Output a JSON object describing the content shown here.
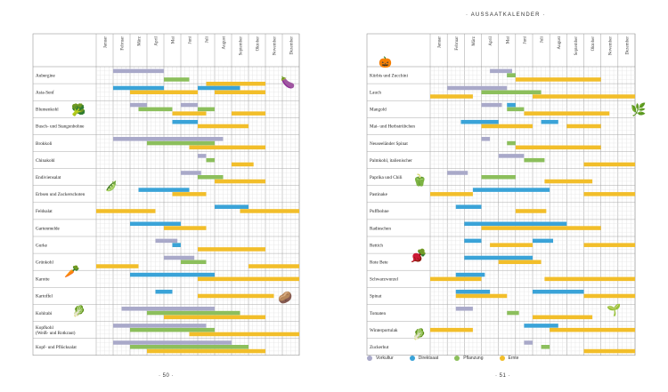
{
  "header": {
    "title": "· AUSSAATKALENDER ·"
  },
  "pages": {
    "left_number": "· 50 ·",
    "right_number": "· 51 ·"
  },
  "colors": {
    "vorkultur": "#a9a9c9",
    "direktsaat": "#3aa3d8",
    "pflanzung": "#8cbf5c",
    "ernte": "#f2be2a",
    "grid": "#cfcfcf"
  },
  "legend": [
    {
      "key": "vorkultur",
      "label": "Vorkultur"
    },
    {
      "key": "direktsaat",
      "label": "Direktsaat"
    },
    {
      "key": "pflanzung",
      "label": "Pflanzung"
    },
    {
      "key": "ernte",
      "label": "Ernte"
    }
  ],
  "months": [
    "Januar",
    "Februar",
    "März",
    "April",
    "Mai",
    "Juni",
    "Juli",
    "August",
    "September",
    "Oktober",
    "November",
    "Dezember"
  ],
  "chart_data": [
    {
      "type": "table",
      "page": "left",
      "rows": [
        {
          "name": "Aubergine",
          "bars": [
            [
              0,
              1,
              4,
              "vorkultur"
            ],
            [
              2,
              4,
              5.5,
              "pflanzung"
            ],
            [
              3,
              6.5,
              10,
              "ernte"
            ]
          ]
        },
        {
          "name": "Asia-Senf",
          "bars": [
            [
              0,
              1,
              4,
              "direktsaat"
            ],
            [
              0,
              6,
              8.5,
              "direktsaat"
            ],
            [
              1,
              2,
              6,
              "ernte"
            ],
            [
              1,
              7,
              10,
              "ernte"
            ]
          ]
        },
        {
          "name": "Blumenkohl",
          "bars": [
            [
              0,
              2,
              3,
              "vorkultur"
            ],
            [
              0,
              5,
              6,
              "vorkultur"
            ],
            [
              1,
              2.5,
              4.5,
              "pflanzung"
            ],
            [
              1,
              6,
              7,
              "pflanzung"
            ],
            [
              2,
              4.5,
              6.5,
              "ernte"
            ],
            [
              2,
              8,
              10,
              "ernte"
            ]
          ]
        },
        {
          "name": "Busch- und Stangenbohne",
          "bars": [
            [
              0,
              4.5,
              6,
              "direktsaat"
            ],
            [
              1,
              6,
              9,
              "ernte"
            ]
          ]
        },
        {
          "name": "Brokkoli",
          "bars": [
            [
              0,
              1,
              7.5,
              "vorkultur"
            ],
            [
              1,
              3,
              7,
              "pflanzung"
            ],
            [
              2,
              5.5,
              10,
              "ernte"
            ]
          ]
        },
        {
          "name": "Chinakohl",
          "bars": [
            [
              0,
              6,
              6.5,
              "vorkultur"
            ],
            [
              1,
              6.5,
              7,
              "pflanzung"
            ],
            [
              2,
              8,
              9.3,
              "ernte"
            ]
          ]
        },
        {
          "name": "Endiviensalat",
          "bars": [
            [
              0,
              5,
              6.2,
              "vorkultur"
            ],
            [
              1,
              6,
              7.5,
              "pflanzung"
            ],
            [
              2,
              7,
              10,
              "ernte"
            ]
          ]
        },
        {
          "name": "Erbsen und Zuckerschoten",
          "bars": [
            [
              0,
              2.5,
              5.5,
              "direktsaat"
            ],
            [
              1,
              4.5,
              6.5,
              "ernte"
            ]
          ]
        },
        {
          "name": "Feldsalat",
          "bars": [
            [
              0,
              7,
              9,
              "direktsaat"
            ],
            [
              1,
              0,
              3.5,
              "ernte"
            ],
            [
              1,
              8.5,
              12,
              "ernte"
            ]
          ]
        },
        {
          "name": "Gartenmelde",
          "bars": [
            [
              0,
              2,
              5,
              "direktsaat"
            ],
            [
              1,
              4,
              6.5,
              "ernte"
            ]
          ]
        },
        {
          "name": "Gurke",
          "bars": [
            [
              0,
              3.5,
              4.8,
              "vorkultur"
            ],
            [
              1,
              4.5,
              5,
              "pflanzung"
            ],
            [
              1,
              4.5,
              5,
              "direktsaat"
            ],
            [
              2,
              6,
              10,
              "ernte"
            ]
          ]
        },
        {
          "name": "Grünkohl",
          "bars": [
            [
              0,
              4,
              5.8,
              "vorkultur"
            ],
            [
              1,
              5,
              6.5,
              "pflanzung"
            ],
            [
              2,
              0,
              2.5,
              "ernte"
            ],
            [
              2,
              9,
              12,
              "ernte"
            ]
          ]
        },
        {
          "name": "Karotte",
          "bars": [
            [
              0,
              2,
              7,
              "direktsaat"
            ],
            [
              1,
              6,
              12,
              "ernte"
            ]
          ]
        },
        {
          "name": "Kartoffel",
          "bars": [
            [
              0,
              3.5,
              4.5,
              "direktsaat"
            ],
            [
              1,
              6,
              10.5,
              "ernte"
            ]
          ]
        },
        {
          "name": "Kohlrabi",
          "bars": [
            [
              0,
              1.5,
              7,
              "vorkultur"
            ],
            [
              1,
              3,
              8.5,
              "pflanzung"
            ],
            [
              2,
              4,
              10,
              "ernte"
            ]
          ]
        },
        {
          "name": "Kopfkohl\n(Weiß- und Rotkraut)",
          "bars": [
            [
              0,
              1,
              6.5,
              "vorkultur"
            ],
            [
              1,
              2,
              7,
              "pflanzung"
            ],
            [
              2,
              5.5,
              12,
              "ernte"
            ]
          ]
        },
        {
          "name": "Kopf- und Pflücksalat",
          "bars": [
            [
              0,
              1,
              8,
              "vorkultur"
            ],
            [
              1,
              2,
              9,
              "pflanzung"
            ],
            [
              2,
              3,
              10,
              "ernte"
            ]
          ]
        }
      ]
    },
    {
      "type": "table",
      "page": "right",
      "rows": [
        {
          "name": "Kürbis und Zucchini",
          "bars": [
            [
              0,
              3.5,
              4.8,
              "vorkultur"
            ],
            [
              1,
              4.5,
              5,
              "direktsaat"
            ],
            [
              1,
              4.5,
              5,
              "pflanzung"
            ],
            [
              2,
              5,
              10,
              "ernte"
            ]
          ]
        },
        {
          "name": "Lauch",
          "bars": [
            [
              0,
              1,
              4.5,
              "vorkultur"
            ],
            [
              1,
              3,
              6.5,
              "pflanzung"
            ],
            [
              2,
              0,
              2.5,
              "ernte"
            ],
            [
              2,
              6,
              12,
              "ernte"
            ]
          ]
        },
        {
          "name": "Mangold",
          "bars": [
            [
              0,
              3,
              4.2,
              "vorkultur"
            ],
            [
              0,
              4.5,
              5,
              "direktsaat"
            ],
            [
              1,
              4.5,
              5.5,
              "pflanzung"
            ],
            [
              2,
              5.5,
              10.5,
              "ernte"
            ]
          ]
        },
        {
          "name": "Mai- und Herbstrübchen",
          "bars": [
            [
              0,
              1.8,
              4,
              "direktsaat"
            ],
            [
              0,
              6.5,
              7.5,
              "direktsaat"
            ],
            [
              1,
              3,
              6,
              "ernte"
            ],
            [
              1,
              8,
              10,
              "ernte"
            ]
          ]
        },
        {
          "name": "Neuseeländer Spinat",
          "bars": [
            [
              0,
              3,
              3.5,
              "vorkultur"
            ],
            [
              1,
              4.5,
              5,
              "pflanzung"
            ],
            [
              2,
              5,
              10,
              "ernte"
            ]
          ]
        },
        {
          "name": "Palmkohl, italienischer",
          "bars": [
            [
              0,
              4,
              5.5,
              "vorkultur"
            ],
            [
              1,
              5.5,
              6.7,
              "pflanzung"
            ],
            [
              2,
              9,
              12,
              "ernte"
            ]
          ]
        },
        {
          "name": "Paprika und Chili",
          "bars": [
            [
              0,
              1,
              2.2,
              "vorkultur"
            ],
            [
              1,
              3,
              5,
              "pflanzung"
            ],
            [
              2,
              6.7,
              9.5,
              "ernte"
            ]
          ]
        },
        {
          "name": "Pastinake",
          "bars": [
            [
              0,
              2.5,
              7,
              "direktsaat"
            ],
            [
              1,
              0,
              2.5,
              "ernte"
            ],
            [
              1,
              9,
              12,
              "ernte"
            ]
          ]
        },
        {
          "name": "Puffbohne",
          "bars": [
            [
              0,
              1.5,
              3,
              "direktsaat"
            ],
            [
              1,
              5,
              6.8,
              "ernte"
            ]
          ]
        },
        {
          "name": "Radieschen",
          "bars": [
            [
              0,
              2,
              8,
              "direktsaat"
            ],
            [
              1,
              3,
              10,
              "ernte"
            ]
          ]
        },
        {
          "name": "Rettich",
          "bars": [
            [
              0,
              2,
              3,
              "direktsaat"
            ],
            [
              0,
              6,
              7.2,
              "direktsaat"
            ],
            [
              1,
              3.5,
              6,
              "ernte"
            ],
            [
              1,
              9,
              12,
              "ernte"
            ]
          ]
        },
        {
          "name": "Rote Bete",
          "bars": [
            [
              0,
              2,
              6,
              "direktsaat"
            ],
            [
              1,
              4,
              6.5,
              "ernte"
            ]
          ]
        },
        {
          "name": "Schwarzwurzel",
          "bars": [
            [
              0,
              1.5,
              3.2,
              "direktsaat"
            ],
            [
              1,
              0,
              3,
              "ernte"
            ],
            [
              1,
              6.7,
              12,
              "ernte"
            ]
          ]
        },
        {
          "name": "Spinat",
          "bars": [
            [
              0,
              1.5,
              3.5,
              "direktsaat"
            ],
            [
              0,
              6,
              9,
              "direktsaat"
            ],
            [
              1,
              1.5,
              4.5,
              "ernte"
            ],
            [
              1,
              9,
              12,
              "ernte"
            ]
          ]
        },
        {
          "name": "Tomaten",
          "bars": [
            [
              0,
              1.5,
              2.5,
              "vorkultur"
            ],
            [
              1,
              4.5,
              5.2,
              "pflanzung"
            ],
            [
              2,
              6,
              9.5,
              "ernte"
            ]
          ]
        },
        {
          "name": "Winterportulak",
          "bars": [
            [
              0,
              5.5,
              7.5,
              "direktsaat"
            ],
            [
              1,
              0,
              2.5,
              "ernte"
            ],
            [
              1,
              7,
              12,
              "ernte"
            ]
          ]
        },
        {
          "name": "Zuckerhut",
          "bars": [
            [
              0,
              5.5,
              6,
              "vorkultur"
            ],
            [
              1,
              6.5,
              7,
              "pflanzung"
            ],
            [
              2,
              9,
              12,
              "ernte"
            ]
          ]
        }
      ]
    }
  ]
}
